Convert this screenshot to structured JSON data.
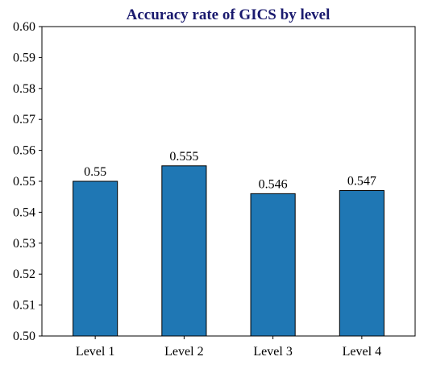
{
  "chart_data": {
    "type": "bar",
    "title": "Accuracy rate of GICS by level",
    "categories": [
      "Level 1",
      "Level 2",
      "Level 3",
      "Level 4"
    ],
    "values": [
      0.55,
      0.555,
      0.546,
      0.547
    ],
    "data_labels": [
      "0.55",
      "0.555",
      "0.546",
      "0.547"
    ],
    "xlabel": "",
    "ylabel": "",
    "ylim": [
      0.5,
      0.6
    ],
    "yticks": [
      "0.50",
      "0.51",
      "0.52",
      "0.53",
      "0.54",
      "0.55",
      "0.56",
      "0.57",
      "0.58",
      "0.59",
      "0.60"
    ],
    "grid": false,
    "bar_color": "#1f77b4",
    "title_color": "#1a1a6e"
  }
}
